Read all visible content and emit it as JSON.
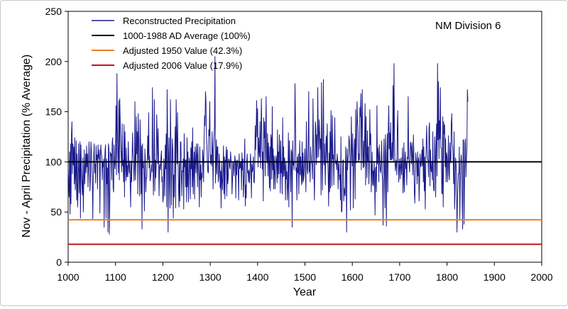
{
  "chart_data": {
    "type": "line",
    "annotation": "NM Division 6",
    "xlabel": "Year",
    "ylabel": "Nov - April Precipitation (% Average)",
    "xlim": [
      1000,
      2000
    ],
    "ylim": [
      0,
      250
    ],
    "xticks": [
      1000,
      1100,
      1200,
      1300,
      1400,
      1500,
      1600,
      1700,
      1800,
      1900,
      2000
    ],
    "yticks": [
      0,
      50,
      100,
      150,
      200,
      250
    ],
    "grid": false,
    "legend_position": "top-left",
    "series": [
      {
        "name": "Reconstructed Precipitation",
        "color": "#1a1a8c",
        "x_start": 1000,
        "x_step": 1,
        "values": [
          95,
          80,
          65,
          110,
          48,
          118,
          58,
          128,
          140,
          88,
          118,
          97,
          115,
          78,
          124,
          72,
          88,
          121,
          62,
          108,
          55,
          72,
          118,
          90,
          69,
          120,
          44,
          117,
          88,
          78,
          67,
          104,
          50,
          80,
          112,
          78,
          93,
          108,
          89,
          116,
          95,
          108,
          75,
          94,
          120,
          104,
          71,
          83,
          120,
          112,
          93,
          83,
          43,
          84,
          107,
          118,
          89,
          98,
          79,
          116,
          102,
          107,
          73,
          117,
          106,
          103,
          112,
          49,
          103,
          117,
          108,
          106,
          82,
          100,
          95,
          103,
          35,
          100,
          112,
          117,
          44,
          103,
          78,
          94,
          30,
          118,
          114,
          28,
          65,
          110,
          106,
          108,
          82,
          119,
          124,
          74,
          70,
          117,
          99,
          93,
          104,
          156,
          87,
          188,
          132,
          107,
          89,
          161,
          82,
          163,
          140,
          116,
          106,
          90,
          138,
          96,
          102,
          80,
          137,
          65,
          130,
          100,
          81,
          114,
          85,
          96,
          85,
          120,
          96,
          89,
          101,
          79,
          55,
          101,
          80,
          105,
          129,
          108,
          103,
          81,
          95,
          160,
          82,
          100,
          145,
          108,
          130,
          68,
          148,
          125,
          95,
          66,
          142,
          117,
          68,
          116,
          33,
          118,
          94,
          100,
          86,
          51,
          113,
          102,
          70,
          84,
          84,
          104,
          126,
          102,
          149,
          94,
          106,
          81,
          84,
          90,
          97,
          90,
          174,
          105,
          67,
          99,
          162,
          71,
          102,
          84,
          98,
          147,
          124,
          98,
          133,
          101,
          66,
          95,
          98,
          92,
          105,
          111,
          80,
          85,
          60,
          64,
          103,
          90,
          66,
          117,
          93,
          128,
          55,
          172,
          130,
          30,
          105,
          124,
          77,
          54,
          162,
          115,
          57,
          91,
          123,
          112,
          44,
          87,
          65,
          105,
          135,
          54,
          162,
          127,
          98,
          149,
          100,
          76,
          55,
          99,
          61,
          120,
          120,
          88,
          66,
          91,
          90,
          103,
          53,
          128,
          95,
          102,
          75,
          102,
          60,
          124,
          75,
          110,
          60,
          88,
          104,
          96,
          63,
          114,
          93,
          120,
          75,
          134,
          68,
          95,
          110,
          63,
          115,
          101,
          89,
          118,
          107,
          75,
          118,
          93,
          85,
          55,
          115,
          82,
          97,
          65,
          89,
          84,
          112,
          104,
          80,
          122,
          146,
          136,
          170,
          160,
          124,
          116,
          98,
          90,
          89,
          132,
          126,
          160,
          107,
          98,
          107,
          96,
          130,
          112,
          73,
          112,
          124,
          135,
          205,
          79,
          94,
          122,
          88,
          115,
          115,
          80,
          86,
          108,
          96,
          74,
          91,
          54,
          100,
          81,
          72,
          93,
          116,
          68,
          105,
          63,
          102,
          101,
          115,
          66,
          112,
          78,
          84,
          103,
          102,
          95,
          93,
          110,
          101,
          100,
          68,
          82,
          99,
          100,
          86,
          95,
          106,
          100,
          64,
          101,
          87,
          102,
          101,
          90,
          62,
          108,
          93,
          100,
          94,
          100,
          72,
          109,
          92,
          103,
          65,
          78,
          100,
          123,
          56,
          77,
          64,
          99,
          108,
          89,
          91,
          80,
          92,
          79,
          92,
          108,
          96,
          64,
          98,
          90,
          93,
          105,
          80,
          79,
          97,
          136,
          112,
          132,
          161,
          125,
          153,
          95,
          124,
          110,
          105,
          140,
          94,
          124,
          163,
          129,
          93,
          110,
          61,
          144,
          124,
          140,
          86,
          124,
          165,
          104,
          99,
          128,
          86,
          119,
          102,
          74,
          115,
          71,
          127,
          123,
          83,
          155,
          92,
          113,
          73,
          106,
          91,
          73,
          101,
          106,
          100,
          79,
          132,
          84,
          110,
          88,
          127,
          112,
          69,
          121,
          89,
          100,
          68,
          144,
          85,
          115,
          86,
          104,
          94,
          62,
          100,
          83,
          90,
          62,
          75,
          129,
          55,
          121,
          101,
          93,
          70,
          112,
          109,
          35,
          121,
          97,
          100,
          92,
          114,
          178,
          143,
          91,
          94,
          62,
          105,
          89,
          108,
          68,
          95,
          121,
          87,
          105,
          87,
          77,
          120,
          79,
          109,
          81,
          87,
          102,
          113,
          90,
          70,
          140,
          106,
          92,
          88,
          118,
          170,
          90,
          100,
          80,
          115,
          106,
          99,
          97,
          83,
          163,
          119,
          90,
          62,
          98,
          140,
          133,
          97,
          127,
          104,
          174,
          130,
          105,
          142,
          130,
          113,
          123,
          67,
          179,
          115,
          72,
          123,
          182,
          97,
          118,
          101,
          77,
          117,
          126,
          99,
          138,
          104,
          88,
          56,
          109,
          70,
          130,
          74,
          151,
          119,
          76,
          146,
          103,
          107,
          77,
          104,
          144,
          103,
          98,
          101,
          92,
          108,
          102,
          73,
          97,
          99,
          82,
          87,
          62,
          125,
          51,
          50,
          75,
          101,
          102,
          61,
          74,
          69,
          66,
          115,
          95,
          30,
          113,
          92,
          104,
          107,
          126,
          121,
          105,
          52,
          99,
          145,
          110,
          96,
          128,
          54,
          92,
          114,
          123,
          63,
          152,
          99,
          117,
          160,
          139,
          134,
          100,
          108,
          102,
          154,
          145,
          168,
          92,
          142,
          172,
          106,
          94,
          121,
          95,
          125,
          158,
          77,
          145,
          106,
          84,
          131,
          100,
          115,
          78,
          96,
          152,
          117,
          128,
          70,
          89,
          110,
          77,
          91,
          76,
          100,
          90,
          47,
          93,
          95,
          70,
          156,
          98,
          114,
          107,
          80,
          117,
          105,
          92,
          89,
          97,
          121,
          88,
          81,
          37,
          103,
          123,
          90,
          54,
          127,
          108,
          36,
          102,
          128,
          70,
          133,
          156,
          113,
          129,
          102,
          139,
          102,
          102,
          119,
          103,
          176,
          100,
          198,
          131,
          101,
          91,
          98,
          102,
          87,
          133,
          151,
          103,
          80,
          96,
          103,
          83,
          95,
          104,
          87,
          95,
          114,
          69,
          82,
          119,
          70,
          99,
          110,
          93,
          100,
          77,
          105,
          103,
          165,
          104,
          98,
          90,
          111,
          120,
          115,
          98,
          119,
          105,
          87,
          127,
          108,
          70,
          59,
          81,
          109,
          102,
          101,
          78,
          110,
          86,
          104,
          61,
          79,
          108,
          98,
          95,
          102,
          112,
          96,
          123,
          80,
          115,
          71,
          105,
          53,
          90,
          117,
          136,
          111,
          103,
          101,
          85,
          134,
          139,
          76,
          112,
          94,
          90,
          100,
          82,
          130,
          81,
          72,
          71,
          125,
          110,
          65,
          121,
          138,
          86,
          198,
          122,
          180,
          103,
          141,
          123,
          174,
          114,
          114,
          69,
          68,
          145,
          55,
          140,
          128,
          137,
          95,
          123,
          80,
          109,
          105,
          80,
          97,
          126,
          87,
          82,
          119,
          102,
          99,
          138,
          148,
          118,
          115,
          102,
          78,
          130,
          53,
          70,
          104,
          99,
          88,
          30,
          60,
          76,
          88,
          88,
          115,
          43,
          77,
          99,
          107,
          99,
          60,
          33,
          122,
          122,
          38,
          82,
          119,
          123,
          85,
          103,
          112,
          172,
          160
        ]
      },
      {
        "name": "1000-1988 AD Average (100%)",
        "color": "#000000",
        "value": 100
      },
      {
        "name": "Adjusted 1950 Value  (42.3%)",
        "color": "#f07c20",
        "value": 42.3
      },
      {
        "name": "Adjusted 2006 Value  (17.9%)",
        "color": "#c0141c",
        "value": 17.9
      }
    ]
  }
}
